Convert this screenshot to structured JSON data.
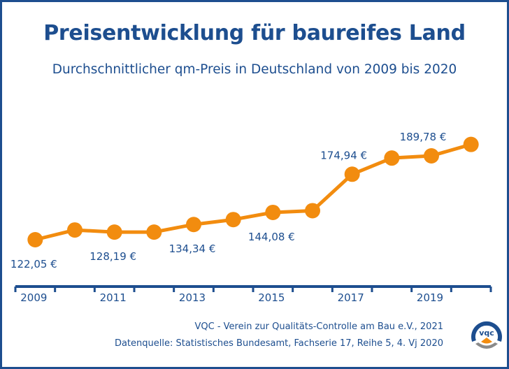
{
  "header": {
    "title": "Preisentwicklung für baureifes Land",
    "subtitle": "Durchschnittlicher qm-Preis in Deutschland von 2009 bis 2020"
  },
  "footer": {
    "credit": "VQC - Verein zur Qualitäts-Controlle am Bau e.V., 2021",
    "source": "Datenquelle: Statistisches Bundesamt, Fachserie 17, Reihe 5, 4. Vj 2020",
    "logo_text": "VQC"
  },
  "colors": {
    "primary": "#1d4e8f",
    "accent": "#f28c0f",
    "logo_gray": "#8a8a8a"
  },
  "chart_data": {
    "type": "line",
    "title": "Preisentwicklung für baureifes Land",
    "subtitle": "Durchschnittlicher qm-Preis in Deutschland von 2009 bis 2020",
    "xlabel": "",
    "ylabel": "",
    "x": [
      2009,
      2010,
      2011,
      2012,
      2013,
      2014,
      2015,
      2016,
      2017,
      2018,
      2019,
      2020
    ],
    "values": [
      122.05,
      129.9,
      128.19,
      128.2,
      134.34,
      138.3,
      144.08,
      145.5,
      174.94,
      188.0,
      189.78,
      199.0
    ],
    "ylim": [
      100,
      220
    ],
    "grid": false,
    "legend": "none",
    "tick_labels": [
      "2009",
      "2011",
      "2013",
      "2015",
      "2017",
      "2019"
    ],
    "data_labels": [
      {
        "year": 2009,
        "text": "122,05 €",
        "position": "below"
      },
      {
        "year": 2011,
        "text": "128,19 €",
        "position": "below"
      },
      {
        "year": 2013,
        "text": "134,34 €",
        "position": "below"
      },
      {
        "year": 2015,
        "text": "144,08 €",
        "position": "below"
      },
      {
        "year": 2017,
        "text": "174,94 €",
        "position": "above"
      },
      {
        "year": 2019,
        "text": "189,78 €",
        "position": "above"
      }
    ]
  }
}
